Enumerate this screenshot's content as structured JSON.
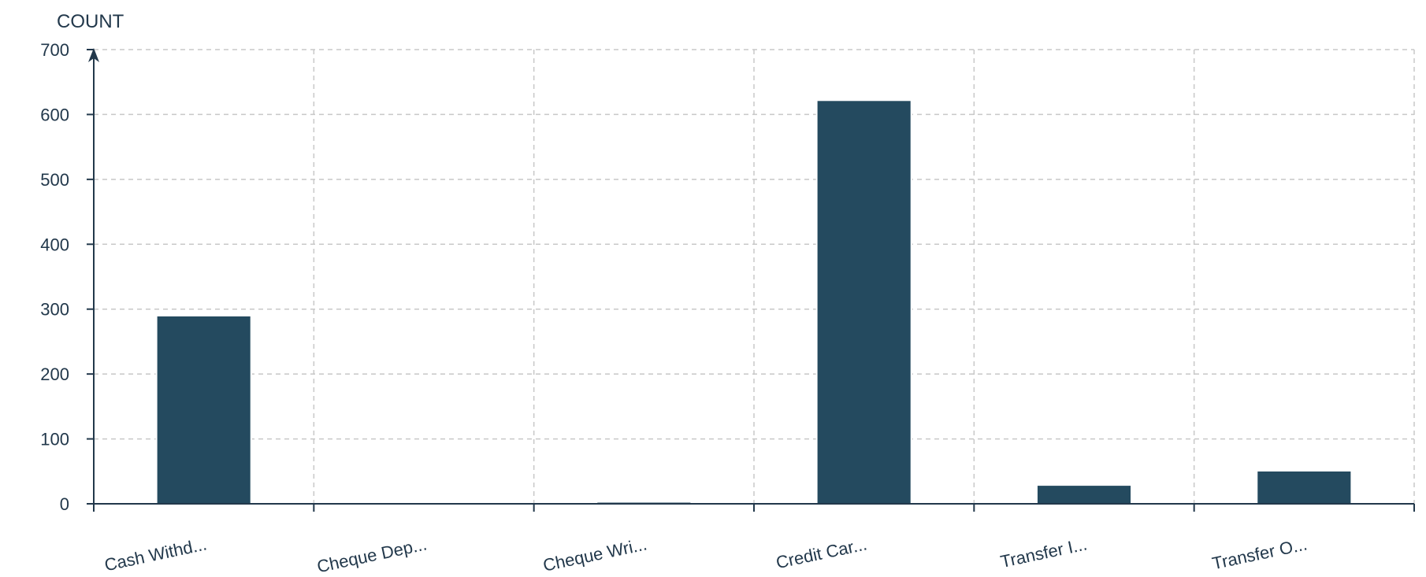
{
  "chart_data": {
    "type": "bar",
    "ylabel": "COUNT",
    "xlabel": "",
    "title": "",
    "categories": [
      "Cash Withd...",
      "Cheque Dep...",
      "Cheque Wri...",
      "Credit Car...",
      "Transfer I...",
      "Transfer O..."
    ],
    "series": [
      {
        "values": [
          290,
          1,
          3,
          622,
          29,
          51
        ]
      }
    ],
    "ylim": [
      0,
      700
    ],
    "yticks": [
      0,
      100,
      200,
      300,
      400,
      500,
      600,
      700
    ],
    "grid": true,
    "legend": "none",
    "colors": {
      "bar": "#244a5f",
      "axis": "#22384b",
      "grid": "#c8c8c8",
      "text": "#22384b"
    }
  }
}
